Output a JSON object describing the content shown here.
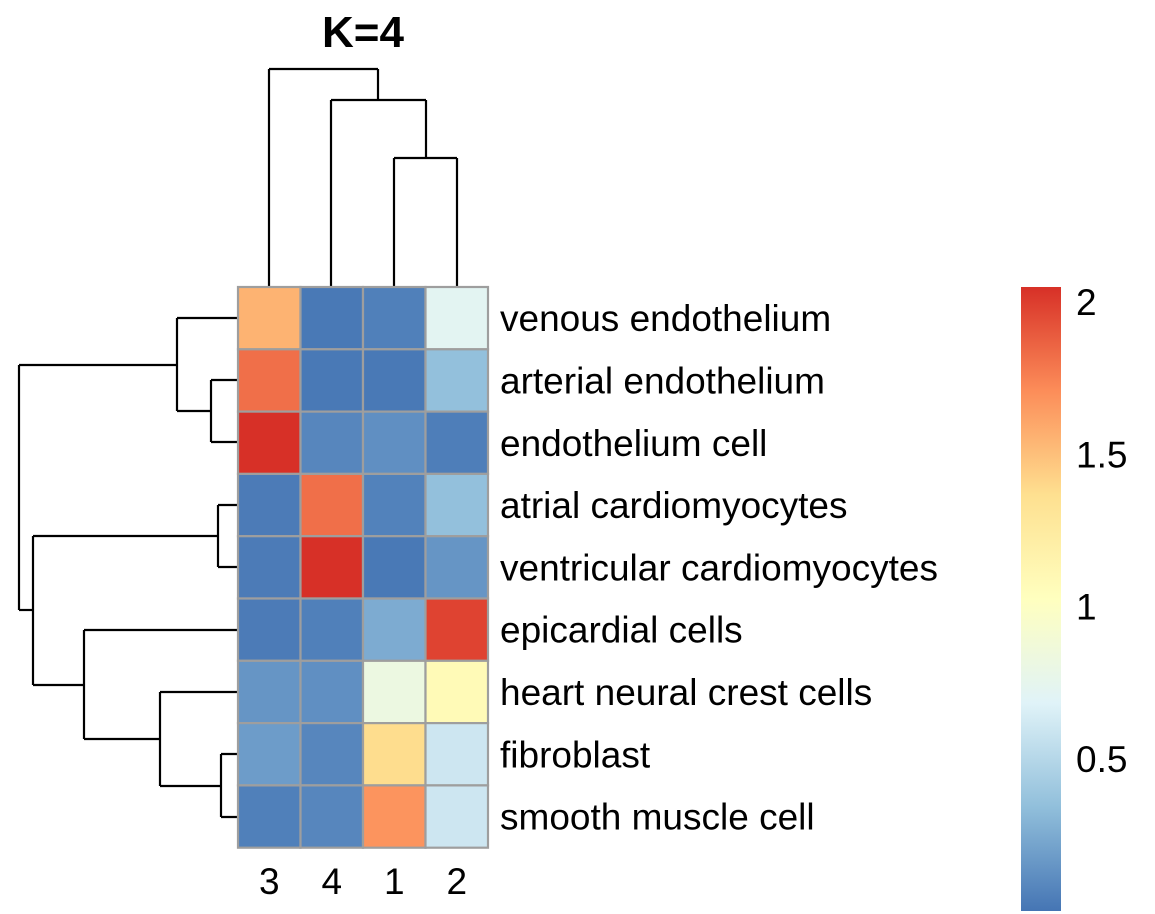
{
  "chart_data": {
    "type": "heatmap",
    "title": "K=4",
    "columns": [
      "3",
      "4",
      "1",
      "2"
    ],
    "rows": [
      "venous endothelium",
      "arterial endothelium",
      "endothelium cell",
      "atrial cardiomyocytes",
      "ventricular cardiomyocytes",
      "epicardial cells",
      "heart neural crest cells",
      "fibroblast",
      "smooth muscle cell"
    ],
    "values": [
      [
        1.55,
        0.02,
        0.05,
        0.72
      ],
      [
        1.82,
        0.02,
        0.02,
        0.35
      ],
      [
        2.05,
        0.08,
        0.12,
        0.04
      ],
      [
        0.03,
        1.82,
        0.06,
        0.35
      ],
      [
        0.03,
        2.05,
        0.02,
        0.15
      ],
      [
        0.03,
        0.05,
        0.25,
        1.98
      ],
      [
        0.15,
        0.12,
        0.82,
        1.08
      ],
      [
        0.18,
        0.08,
        1.38,
        0.6
      ],
      [
        0.05,
        0.08,
        1.68,
        0.6
      ]
    ],
    "color_scale": {
      "min": 0,
      "max": 2.05,
      "colors": [
        "#4575b4",
        "#91bfdb",
        "#e0f3f8",
        "#ffffbf",
        "#fee090",
        "#fc8d59",
        "#d73027"
      ],
      "ticks": [
        {
          "value": 0.5,
          "label": "0.5"
        },
        {
          "value": 1,
          "label": "1"
        },
        {
          "value": 1.5,
          "label": "1.5"
        },
        {
          "value": 2,
          "label": "2"
        }
      ]
    },
    "legend_position": "right"
  }
}
